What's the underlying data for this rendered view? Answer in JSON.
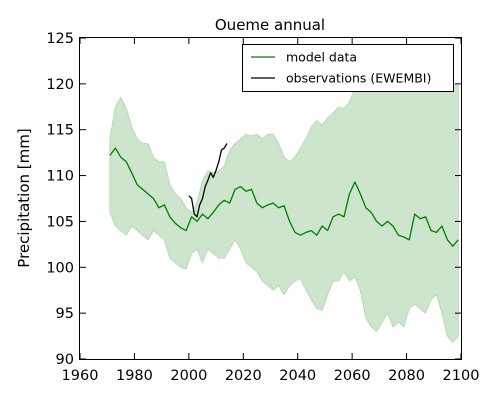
{
  "chart_data": {
    "type": "line",
    "title": "Oueme annual",
    "xlabel": "",
    "ylabel": "Precipitation [mm]",
    "xlim": [
      1960,
      2100
    ],
    "ylim": [
      90,
      125
    ],
    "xticks": [
      1960,
      1980,
      2000,
      2020,
      2040,
      2060,
      2080,
      2100
    ],
    "yticks": [
      90,
      95,
      100,
      105,
      110,
      115,
      120,
      125
    ],
    "legend_position": "top-right",
    "colors": {
      "model_line": "#008000",
      "model_band": "#cce5cc",
      "band_edge": "#b8dbb8",
      "observations": "#000000"
    },
    "series": [
      {
        "name": "model data",
        "x": [
          1971,
          1973,
          1975,
          1977,
          1979,
          1981,
          1983,
          1985,
          1987,
          1989,
          1991,
          1993,
          1995,
          1997,
          1999,
          2001,
          2003,
          2005,
          2007,
          2009,
          2011,
          2013,
          2015,
          2017,
          2019,
          2021,
          2023,
          2025,
          2027,
          2029,
          2031,
          2033,
          2035,
          2037,
          2039,
          2041,
          2043,
          2045,
          2047,
          2049,
          2051,
          2053,
          2055,
          2057,
          2059,
          2061,
          2063,
          2065,
          2067,
          2069,
          2071,
          2073,
          2075,
          2077,
          2079,
          2081,
          2083,
          2085,
          2087,
          2089,
          2091,
          2093,
          2095,
          2097,
          2099
        ],
        "values": [
          112.2,
          113.0,
          112.0,
          111.5,
          110.3,
          109.0,
          108.5,
          108.0,
          107.5,
          106.5,
          106.8,
          105.5,
          104.8,
          104.3,
          104.0,
          105.5,
          105.0,
          105.8,
          105.3,
          106.0,
          106.8,
          107.3,
          107.0,
          108.5,
          108.8,
          108.3,
          108.5,
          107.0,
          106.5,
          106.8,
          107.0,
          106.5,
          106.7,
          105.0,
          103.8,
          103.5,
          103.8,
          104.0,
          103.5,
          104.5,
          104.0,
          105.5,
          105.8,
          105.5,
          108.0,
          109.3,
          108.0,
          106.5,
          106.0,
          105.0,
          104.5,
          105.0,
          104.5,
          103.5,
          103.3,
          103.0,
          105.8,
          105.3,
          105.5,
          104.0,
          103.8,
          104.5,
          103.0,
          102.3,
          103.0
        ]
      },
      {
        "name": "observations (EWEMBI)",
        "x": [
          2000,
          2001,
          2002,
          2003,
          2004,
          2005,
          2006,
          2007,
          2008,
          2009,
          2010,
          2011,
          2012,
          2013,
          2014
        ],
        "values": [
          107.8,
          107.5,
          105.8,
          105.5,
          106.8,
          107.5,
          108.8,
          109.5,
          110.3,
          109.8,
          110.6,
          111.5,
          112.8,
          113.0,
          113.5
        ]
      }
    ],
    "range_band": {
      "name": "model spread",
      "x": [
        1971,
        1973,
        1975,
        1977,
        1979,
        1981,
        1983,
        1985,
        1987,
        1989,
        1991,
        1993,
        1995,
        1997,
        1999,
        2001,
        2003,
        2005,
        2007,
        2009,
        2011,
        2013,
        2015,
        2017,
        2019,
        2021,
        2023,
        2025,
        2027,
        2029,
        2031,
        2033,
        2035,
        2037,
        2039,
        2041,
        2043,
        2045,
        2047,
        2049,
        2051,
        2053,
        2055,
        2057,
        2059,
        2061,
        2063,
        2065,
        2067,
        2069,
        2071,
        2073,
        2075,
        2077,
        2079,
        2081,
        2083,
        2085,
        2087,
        2089,
        2091,
        2093,
        2095,
        2097,
        2099
      ],
      "upper": [
        114.0,
        117.5,
        118.5,
        117.3,
        115.3,
        114.0,
        113.5,
        113.5,
        112.0,
        111.5,
        111.5,
        109.0,
        108.0,
        107.5,
        106.5,
        106.0,
        107.0,
        109.5,
        110.5,
        110.3,
        110.5,
        111.0,
        112.8,
        113.5,
        114.0,
        114.5,
        114.3,
        114.5,
        114.0,
        114.5,
        114.5,
        113.5,
        112.0,
        111.5,
        112.0,
        113.0,
        114.0,
        115.3,
        116.0,
        115.5,
        116.3,
        116.8,
        117.5,
        117.3,
        118.0,
        119.5,
        120.5,
        121.5,
        120.8,
        120.5,
        120.0,
        121.0,
        121.5,
        120.5,
        120.3,
        120.8,
        121.0,
        120.5,
        119.5,
        120.0,
        119.8,
        120.3,
        119.5,
        120.0,
        119.8
      ],
      "lower": [
        106.0,
        104.5,
        104.0,
        103.5,
        104.5,
        104.0,
        103.5,
        103.0,
        104.0,
        103.5,
        103.0,
        101.0,
        100.5,
        100.0,
        99.8,
        101.5,
        102.0,
        100.5,
        102.0,
        101.5,
        101.0,
        101.0,
        102.0,
        103.0,
        102.0,
        100.5,
        100.0,
        99.5,
        98.5,
        98.0,
        97.5,
        98.0,
        97.0,
        98.0,
        98.5,
        98.8,
        97.5,
        96.5,
        95.5,
        95.3,
        97.0,
        98.5,
        98.5,
        99.5,
        98.5,
        99.0,
        97.5,
        94.5,
        93.5,
        93.0,
        94.0,
        95.0,
        93.5,
        94.0,
        93.5,
        95.5,
        96.0,
        95.5,
        95.0,
        96.5,
        97.0,
        95.0,
        92.5,
        91.8,
        92.5
      ]
    }
  }
}
